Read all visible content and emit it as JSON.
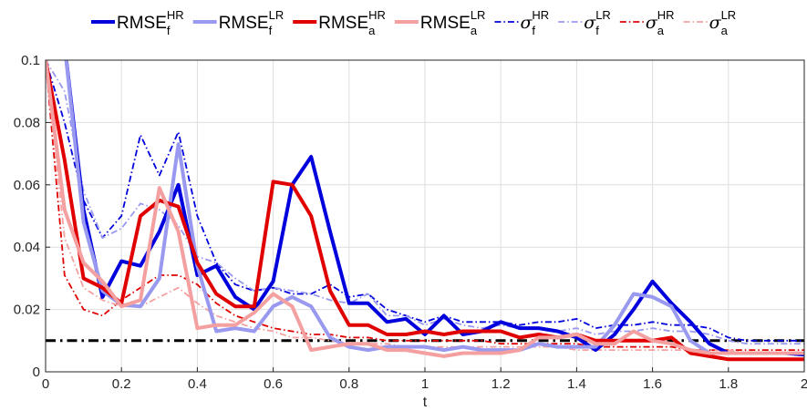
{
  "chart_data": {
    "type": "line",
    "xlabel": "t",
    "ylabel": "",
    "xlim": [
      0,
      2
    ],
    "ylim": [
      0,
      0.1
    ],
    "xticks": [
      0,
      0.2,
      0.4,
      0.6,
      0.8,
      1,
      1.2,
      1.4,
      1.6,
      1.8,
      2
    ],
    "xtick_labels": [
      "0",
      "0.2",
      "0.4",
      "0.6",
      "0.8",
      "1",
      "1.2",
      "1.4",
      "1.6",
      "1.8",
      "2"
    ],
    "yticks": [
      0,
      0.02,
      0.04,
      0.06,
      0.08,
      0.1
    ],
    "ytick_labels": [
      "0",
      "0.02",
      "0.04",
      "0.06",
      "0.08",
      "0.1"
    ],
    "grid": true,
    "legend_position": "top",
    "x": [
      0,
      0.05,
      0.1,
      0.15,
      0.2,
      0.25,
      0.3,
      0.35,
      0.4,
      0.45,
      0.5,
      0.55,
      0.6,
      0.65,
      0.7,
      0.75,
      0.8,
      0.85,
      0.9,
      0.95,
      1.0,
      1.05,
      1.1,
      1.15,
      1.2,
      1.25,
      1.3,
      1.35,
      1.4,
      1.45,
      1.5,
      1.55,
      1.6,
      1.65,
      1.7,
      1.75,
      1.8,
      1.85,
      1.9,
      1.95,
      2.0
    ],
    "series": [
      {
        "label": {
          "base": "RMSE",
          "sub": "f",
          "sup": "HR",
          "sigma": false
        },
        "color": "#0000dd",
        "style": "solid",
        "width": 4,
        "values": [
          0.1,
          0.105,
          0.052,
          0.024,
          0.0355,
          0.034,
          0.045,
          0.06,
          0.031,
          0.034,
          0.024,
          0.02,
          0.029,
          0.06,
          0.069,
          0.045,
          0.022,
          0.022,
          0.016,
          0.017,
          0.012,
          0.018,
          0.012,
          0.013,
          0.016,
          0.014,
          0.014,
          0.013,
          0.011,
          0.007,
          0.012,
          0.02,
          0.029,
          0.022,
          0.016,
          0.009,
          0.006,
          0.006,
          0.006,
          0.006,
          0.0055
        ]
      },
      {
        "label": {
          "base": "RMSE",
          "sub": "f",
          "sup": "LR",
          "sigma": false
        },
        "color": "#9999f0",
        "style": "solid",
        "width": 4,
        "values": [
          0.1,
          0.105,
          0.048,
          0.026,
          0.0215,
          0.021,
          0.03,
          0.073,
          0.034,
          0.013,
          0.014,
          0.013,
          0.021,
          0.024,
          0.021,
          0.011,
          0.008,
          0.007,
          0.008,
          0.008,
          0.008,
          0.007,
          0.008,
          0.007,
          0.007,
          0.007,
          0.009,
          0.008,
          0.008,
          0.008,
          0.015,
          0.025,
          0.024,
          0.021,
          0.01,
          0.006,
          0.006,
          0.006,
          0.006,
          0.006,
          0.006
        ]
      },
      {
        "label": {
          "base": "RMSE",
          "sub": "a",
          "sup": "HR",
          "sigma": false
        },
        "color": "#e00000",
        "style": "solid",
        "width": 4,
        "values": [
          0.1,
          0.068,
          0.03,
          0.027,
          0.022,
          0.05,
          0.055,
          0.053,
          0.035,
          0.025,
          0.021,
          0.021,
          0.061,
          0.06,
          0.05,
          0.026,
          0.015,
          0.015,
          0.012,
          0.012,
          0.013,
          0.012,
          0.013,
          0.013,
          0.013,
          0.011,
          0.012,
          0.011,
          0.012,
          0.01,
          0.01,
          0.01,
          0.01,
          0.011,
          0.006,
          0.005,
          0.004,
          0.004,
          0.004,
          0.004,
          0.004
        ]
      },
      {
        "label": {
          "base": "RMSE",
          "sub": "a",
          "sup": "LR",
          "sigma": false
        },
        "color": "#f4a0a0",
        "style": "solid",
        "width": 4,
        "values": [
          0.1,
          0.052,
          0.035,
          0.029,
          0.021,
          0.023,
          0.059,
          0.045,
          0.014,
          0.015,
          0.015,
          0.019,
          0.025,
          0.021,
          0.007,
          0.008,
          0.009,
          0.009,
          0.007,
          0.007,
          0.006,
          0.005,
          0.006,
          0.006,
          0.006,
          0.007,
          0.011,
          0.011,
          0.012,
          0.009,
          0.009,
          0.013,
          0.01,
          0.009,
          0.007,
          0.006,
          0.006,
          0.006,
          0.006,
          0.006,
          0.006
        ]
      },
      {
        "label": {
          "base": "σ",
          "sub": "f",
          "sup": "HR",
          "sigma": true
        },
        "color": "#0000dd",
        "style": "dashdot",
        "width": 1.8,
        "values": [
          0.1,
          0.08,
          0.055,
          0.043,
          0.05,
          0.076,
          0.063,
          0.077,
          0.05,
          0.035,
          0.028,
          0.026,
          0.027,
          0.025,
          0.025,
          0.028,
          0.024,
          0.025,
          0.02,
          0.018,
          0.016,
          0.018,
          0.016,
          0.016,
          0.016,
          0.015,
          0.016,
          0.016,
          0.017,
          0.014,
          0.015,
          0.015,
          0.016,
          0.015,
          0.015,
          0.014,
          0.011,
          0.01,
          0.01,
          0.01,
          0.01
        ]
      },
      {
        "label": {
          "base": "σ",
          "sub": "f",
          "sup": "LR",
          "sigma": true
        },
        "color": "#9999f0",
        "style": "dashdot",
        "width": 1.8,
        "values": [
          0.1,
          0.09,
          0.058,
          0.043,
          0.046,
          0.054,
          0.052,
          0.047,
          0.037,
          0.035,
          0.03,
          0.026,
          0.027,
          0.026,
          0.025,
          0.023,
          0.022,
          0.025,
          0.018,
          0.018,
          0.015,
          0.017,
          0.015,
          0.014,
          0.015,
          0.014,
          0.014,
          0.013,
          0.014,
          0.012,
          0.013,
          0.013,
          0.014,
          0.013,
          0.013,
          0.012,
          0.01,
          0.009,
          0.009,
          0.009,
          0.009
        ]
      },
      {
        "label": {
          "base": "σ",
          "sub": "a",
          "sup": "HR",
          "sigma": true
        },
        "color": "#e00000",
        "style": "dashdot",
        "width": 1.8,
        "values": [
          0.1,
          0.031,
          0.02,
          0.018,
          0.023,
          0.027,
          0.031,
          0.031,
          0.028,
          0.022,
          0.018,
          0.016,
          0.014,
          0.013,
          0.012,
          0.012,
          0.011,
          0.011,
          0.01,
          0.01,
          0.01,
          0.01,
          0.01,
          0.01,
          0.009,
          0.009,
          0.009,
          0.009,
          0.009,
          0.008,
          0.008,
          0.008,
          0.008,
          0.008,
          0.007,
          0.007,
          0.007,
          0.007,
          0.007,
          0.007,
          0.007
        ]
      },
      {
        "label": {
          "base": "σ",
          "sub": "a",
          "sup": "LR",
          "sigma": true
        },
        "color": "#f4a0a0",
        "style": "dashdot",
        "width": 1.8,
        "values": [
          0.1,
          0.043,
          0.027,
          0.023,
          0.021,
          0.021,
          0.024,
          0.027,
          0.022,
          0.018,
          0.016,
          0.014,
          0.013,
          0.011,
          0.011,
          0.01,
          0.009,
          0.009,
          0.009,
          0.008,
          0.008,
          0.008,
          0.008,
          0.008,
          0.008,
          0.008,
          0.008,
          0.008,
          0.007,
          0.007,
          0.007,
          0.007,
          0.007,
          0.007,
          0.007,
          0.007,
          0.007,
          0.006,
          0.006,
          0.006,
          0.006
        ]
      }
    ],
    "reference_line": {
      "y": 0.01,
      "color": "#000000",
      "style": "dashdot",
      "width": 3
    }
  }
}
